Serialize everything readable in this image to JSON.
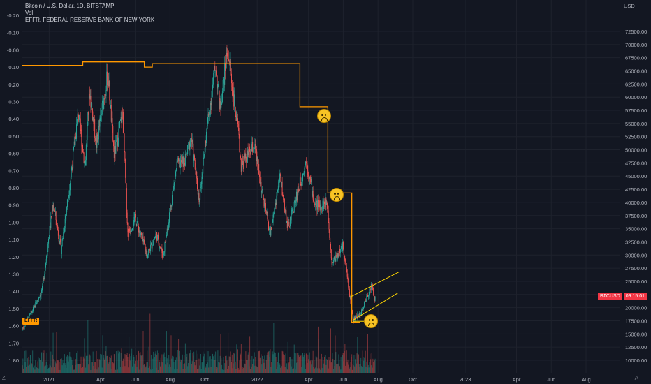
{
  "legend": {
    "title": "Bitcoin / U.S. Dollar, 1D, BITSTAMP",
    "vol": "Vol",
    "effr": "EFFR, FEDERAL RESERVE BANK OF NEW YORK"
  },
  "icons": [
    "sad-face-icon",
    "sad-face-icon",
    "sad-face-icon"
  ],
  "colors": {
    "effr_line": "#ff9800",
    "up": "#26a69a",
    "down": "#ef5350",
    "channel": "#ffd600"
  },
  "badges": {
    "symbol": "BTCUSD",
    "countdown": "09:15:01",
    "effr": "EFFR"
  },
  "corner": {
    "left": "Z",
    "right": "A"
  },
  "chart_data": {
    "type": "candlestick",
    "right_axis": {
      "unit": "USD",
      "ticks": [
        10000,
        12500,
        15000,
        17500,
        20000,
        22500,
        25000,
        27500,
        30000,
        32500,
        35000,
        37500,
        40000,
        42500,
        45000,
        47500,
        50000,
        52500,
        55000,
        57500,
        60000,
        62500,
        65000,
        67500,
        70000,
        72500
      ],
      "tick_labels": [
        "10000.00",
        "12500.00",
        "15000.00",
        "17500.00",
        "20000.00",
        "22500.00",
        "25000.00",
        "27500.00",
        "30000.00",
        "32500.00",
        "35000.00",
        "37500.00",
        "40000.00",
        "42500.00",
        "45000.00",
        "47500.00",
        "50000.00",
        "52500.00",
        "55000.00",
        "57500.00",
        "60000.00",
        "62500.00",
        "65000.00",
        "67500.00",
        "70000.00",
        "72500.00"
      ],
      "range": [
        8000,
        75000
      ]
    },
    "left_axis": {
      "series": "EFFR",
      "inverted": true,
      "ticks": [
        -0.2,
        -0.1,
        0.0,
        0.1,
        0.2,
        0.3,
        0.4,
        0.5,
        0.6,
        0.7,
        0.8,
        0.9,
        1.0,
        1.1,
        1.2,
        1.3,
        1.4,
        1.5,
        1.6,
        1.7,
        1.8
      ],
      "tick_labels": [
        "-0.20",
        "-0.10",
        "-0.00",
        "0.10",
        "0.20",
        "0.30",
        "0.40",
        "0.50",
        "0.60",
        "0.70",
        "0.80",
        "0.90",
        "1.00",
        "1.10",
        "1.20",
        "1.30",
        "1.40",
        "1.50",
        "1.60",
        "1.70",
        "1.80"
      ]
    },
    "x_axis": {
      "labels": [
        "2021",
        "Apr",
        "Jun",
        "Aug",
        "Oct",
        "2022",
        "Apr",
        "Jun",
        "Aug",
        "Oct",
        "2023",
        "Apr",
        "Jun",
        "Aug"
      ],
      "dates": [
        "2021-01-01",
        "2021-04-01",
        "2021-06-01",
        "2021-08-01",
        "2021-10-01",
        "2022-01-01",
        "2022-04-01",
        "2022-06-01",
        "2022-08-01",
        "2022-10-01",
        "2023-01-01",
        "2023-04-01",
        "2023-06-01",
        "2023-08-01"
      ],
      "range": [
        "2020-11-15",
        "2023-09-30"
      ]
    },
    "btc_path": [
      [
        "2020-11-15",
        16000
      ],
      [
        "2020-12-01",
        19000
      ],
      [
        "2020-12-20",
        23500
      ],
      [
        "2021-01-08",
        40000
      ],
      [
        "2021-01-22",
        31000
      ],
      [
        "2021-02-08",
        45000
      ],
      [
        "2021-02-21",
        57000
      ],
      [
        "2021-03-05",
        47000
      ],
      [
        "2021-03-13",
        61000
      ],
      [
        "2021-03-25",
        51000
      ],
      [
        "2021-04-14",
        64500
      ],
      [
        "2021-04-25",
        49000
      ],
      [
        "2021-05-10",
        57000
      ],
      [
        "2021-05-19",
        34000
      ],
      [
        "2021-06-01",
        37000
      ],
      [
        "2021-06-22",
        30000
      ],
      [
        "2021-07-08",
        34000
      ],
      [
        "2021-07-20",
        29800
      ],
      [
        "2021-08-13",
        47000
      ],
      [
        "2021-08-28",
        48000
      ],
      [
        "2021-09-07",
        52500
      ],
      [
        "2021-09-21",
        40500
      ],
      [
        "2021-10-06",
        55000
      ],
      [
        "2021-10-20",
        66000
      ],
      [
        "2021-10-28",
        58000
      ],
      [
        "2021-11-10",
        69000
      ],
      [
        "2021-11-28",
        54000
      ],
      [
        "2021-12-04",
        47000
      ],
      [
        "2021-12-27",
        50800
      ],
      [
        "2022-01-10",
        41500
      ],
      [
        "2022-01-24",
        34000
      ],
      [
        "2022-02-10",
        45000
      ],
      [
        "2022-02-24",
        35000
      ],
      [
        "2022-03-28",
        48000
      ],
      [
        "2022-04-12",
        39500
      ],
      [
        "2022-05-04",
        39700
      ],
      [
        "2022-05-12",
        28500
      ],
      [
        "2022-06-01",
        31700
      ],
      [
        "2022-06-18",
        17600
      ],
      [
        "2022-07-02",
        19000
      ],
      [
        "2022-07-20",
        24200
      ],
      [
        "2022-07-27",
        21500
      ]
    ],
    "last_price": 21500,
    "effr_steps": [
      [
        "2020-11-15",
        0.09
      ],
      [
        "2021-03-01",
        0.07
      ],
      [
        "2021-06-17",
        0.1
      ],
      [
        "2021-07-01",
        0.08
      ],
      [
        "2022-03-17",
        0.33
      ],
      [
        "2022-05-05",
        0.83
      ],
      [
        "2022-06-16",
        1.58
      ],
      [
        "2022-07-01",
        1.58
      ]
    ],
    "channel": {
      "upper": [
        [
          "2022-06-13",
          22000
        ],
        [
          "2022-09-07",
          26800
        ]
      ],
      "lower": [
        [
          "2022-06-18",
          17600
        ],
        [
          "2022-09-05",
          22800
        ]
      ],
      "support": [
        [
          "2022-06-18",
          17400
        ],
        [
          "2022-07-08",
          17400
        ]
      ]
    },
    "annotations": [
      {
        "icon": "sad-face-icon",
        "date": "2022-04-28",
        "value": 56500
      },
      {
        "icon": "sad-face-icon",
        "date": "2022-05-20",
        "value": 41500
      },
      {
        "icon": "sad-face-icon",
        "date": "2022-07-20",
        "value": 17400
      }
    ]
  }
}
